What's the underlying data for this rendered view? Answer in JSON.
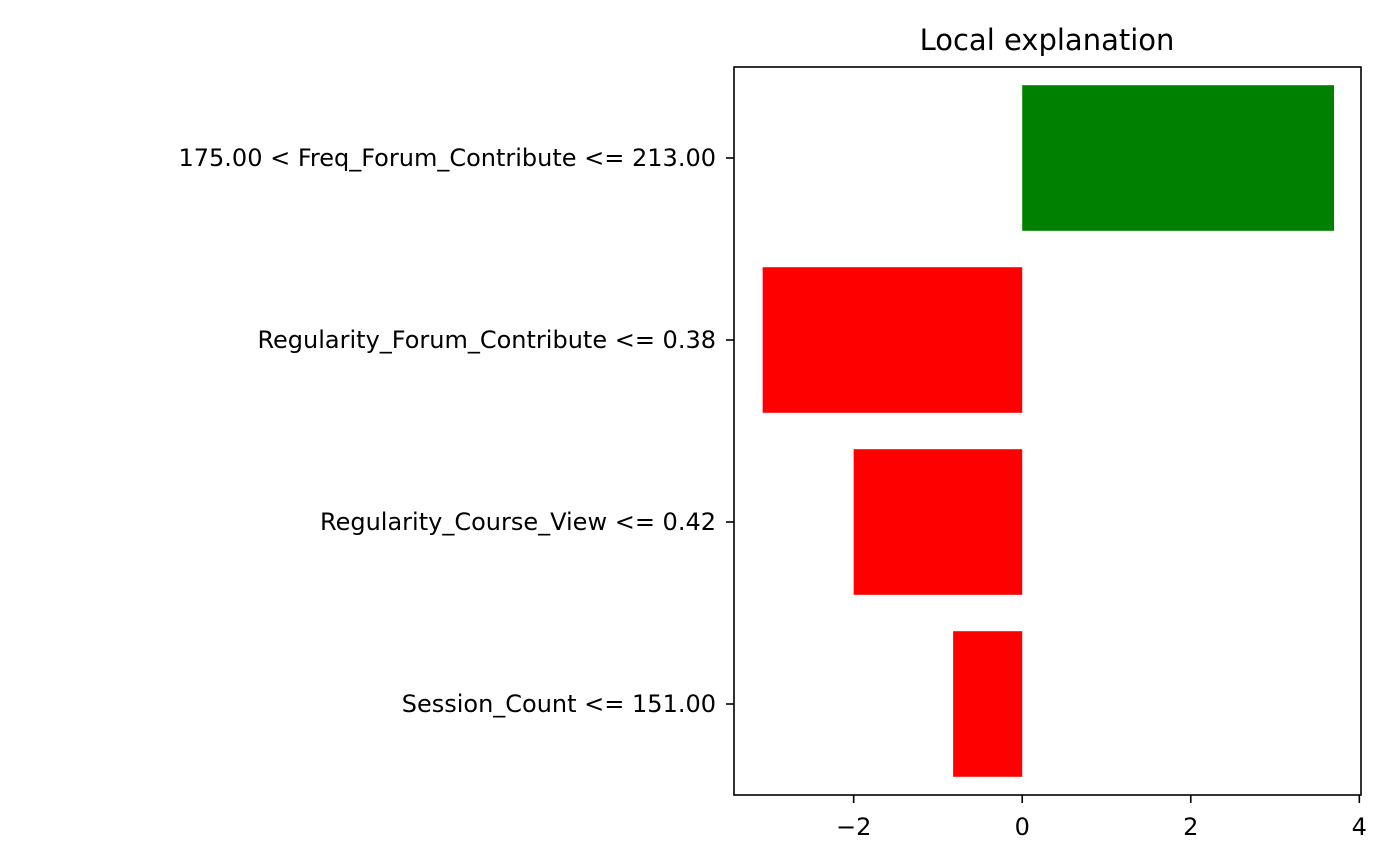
{
  "chart_data": {
    "type": "bar",
    "orientation": "horizontal",
    "title": "Local explanation",
    "xlabel": "",
    "ylabel": "",
    "categories": [
      "175.00 < Freq_Forum_Contribute <= 213.00",
      "Regularity_Forum_Contribute <= 0.38",
      "Regularity_Course_View <= 0.42",
      "Session_Count <= 151.00"
    ],
    "values": [
      3.7,
      -3.08,
      -2.0,
      -0.82
    ],
    "xlim": [
      -3.42,
      4.02
    ],
    "xticks": [
      -2,
      0,
      2,
      4
    ],
    "xtick_labels": [
      "−2",
      "0",
      "2",
      "4"
    ],
    "grid": false,
    "legend": "none",
    "colors": {
      "positive": "#008000",
      "negative": "#ff0000"
    }
  }
}
